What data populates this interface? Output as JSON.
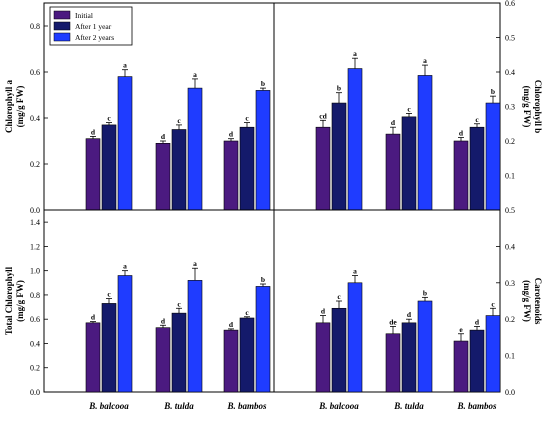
{
  "chart_data": [
    {
      "type": "bar",
      "panel": "top-left",
      "ylabel": "Chlorophyll a (mg/g FW)",
      "ylim": [
        0,
        0.9
      ],
      "yticks": [
        "0.0",
        "0.2",
        "0.4",
        "0.6",
        "0.8"
      ],
      "categories": [
        "B. balcooa",
        "B. tulda",
        "B. bambos"
      ],
      "series": [
        {
          "name": "Initial",
          "values": [
            0.31,
            0.29,
            0.3
          ],
          "errors": [
            0.01,
            0.01,
            0.01
          ],
          "letters": [
            "d",
            "d",
            "d"
          ]
        },
        {
          "name": "After 1 year",
          "values": [
            0.37,
            0.35,
            0.36
          ],
          "errors": [
            0.01,
            0.02,
            0.02
          ],
          "letters": [
            "c",
            "c",
            "c"
          ]
        },
        {
          "name": "After 2 years",
          "values": [
            0.58,
            0.53,
            0.52
          ],
          "errors": [
            0.03,
            0.04,
            0.01
          ],
          "letters": [
            "a",
            "a",
            "b"
          ]
        }
      ]
    },
    {
      "type": "bar",
      "panel": "top-right",
      "ylabel": "Chlorophyll b (mg/g FW)",
      "ylim": [
        0,
        0.6
      ],
      "yticks": [
        "0.1",
        "0.2",
        "0.3",
        "0.4",
        "0.5",
        "0.6"
      ],
      "categories": [
        "B. balcooa",
        "B. tulda",
        "B. bambos"
      ],
      "series": [
        {
          "name": "Initial",
          "values": [
            0.24,
            0.22,
            0.2
          ],
          "errors": [
            0.02,
            0.02,
            0.01
          ],
          "letters": [
            "cd",
            "d",
            "d"
          ]
        },
        {
          "name": "After 1 year",
          "values": [
            0.31,
            0.27,
            0.24
          ],
          "errors": [
            0.03,
            0.01,
            0.01
          ],
          "letters": [
            "b",
            "c",
            "c"
          ]
        },
        {
          "name": "After 2 years",
          "values": [
            0.41,
            0.39,
            0.31
          ],
          "errors": [
            0.03,
            0.03,
            0.02
          ],
          "letters": [
            "a",
            "a",
            "b"
          ]
        }
      ]
    },
    {
      "type": "bar",
      "panel": "bottom-left",
      "ylabel": "Total Chlorophyll (mg/g FW)",
      "ylim": [
        0,
        1.5
      ],
      "yticks": [
        "0.0",
        "0.2",
        "0.4",
        "0.6",
        "0.8",
        "1.0",
        "1.2",
        "1.4"
      ],
      "categories": [
        "B. balcooa",
        "B. tulda",
        "B. bambos"
      ],
      "series": [
        {
          "name": "Initial",
          "values": [
            0.57,
            0.53,
            0.51
          ],
          "errors": [
            0.01,
            0.02,
            0.01
          ],
          "letters": [
            "d",
            "d",
            "d"
          ]
        },
        {
          "name": "After 1 year",
          "values": [
            0.73,
            0.65,
            0.61
          ],
          "errors": [
            0.04,
            0.04,
            0.01
          ],
          "letters": [
            "c",
            "c",
            "c"
          ]
        },
        {
          "name": "After 2 years",
          "values": [
            0.96,
            0.92,
            0.87
          ],
          "errors": [
            0.04,
            0.1,
            0.02
          ],
          "letters": [
            "a",
            "a",
            "b"
          ]
        }
      ]
    },
    {
      "type": "bar",
      "panel": "bottom-right",
      "ylabel": "Carotenoids (mg/g FW)",
      "ylim": [
        0,
        0.5
      ],
      "yticks": [
        "0.0",
        "0.1",
        "0.2",
        "0.3",
        "0.4",
        "0.5"
      ],
      "categories": [
        "B. balcooa",
        "B. tulda",
        "B. bambos"
      ],
      "series": [
        {
          "name": "Initial",
          "values": [
            0.19,
            0.16,
            0.14
          ],
          "errors": [
            0.02,
            0.02,
            0.02
          ],
          "letters": [
            "d",
            "de",
            "e"
          ]
        },
        {
          "name": "After 1 year",
          "values": [
            0.23,
            0.19,
            0.17
          ],
          "errors": [
            0.02,
            0.01,
            0.01
          ],
          "letters": [
            "c",
            "d",
            "d"
          ]
        },
        {
          "name": "After 2 years",
          "values": [
            0.3,
            0.25,
            0.21
          ],
          "errors": [
            0.02,
            0.01,
            0.02
          ],
          "letters": [
            "a",
            "b",
            "c"
          ]
        }
      ]
    }
  ],
  "legend": {
    "position": "top-left",
    "entries": [
      {
        "label": "Initial",
        "color": "#4b1a80"
      },
      {
        "label": "After 1 year",
        "color": "#141a6b"
      },
      {
        "label": "After 2 years",
        "color": "#1f3cff"
      }
    ]
  },
  "x_categories": [
    "B. balcooa",
    "B. tulda",
    "B. bambos"
  ],
  "y_titles": {
    "chl_a": [
      "Chlorophyll a",
      "(mg/g FW)"
    ],
    "chl_b": [
      "Chlorophyll b",
      "(mg/g FW)"
    ],
    "total": [
      "Total Chlorophyll",
      "(mg/g FW)"
    ],
    "carot": [
      "Carotenoids",
      "(mg/g FW)"
    ]
  }
}
